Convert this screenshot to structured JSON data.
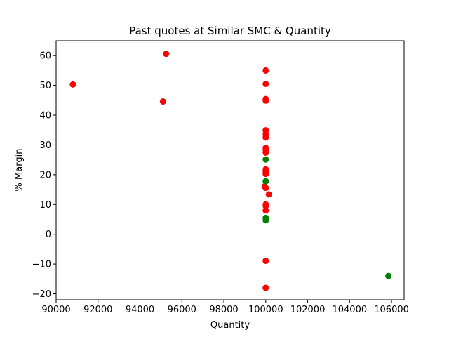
{
  "chart_data": {
    "type": "scatter",
    "title": "Past quotes at Similar SMC & Quantity",
    "xlabel": "Quantity",
    "ylabel": "% Margin",
    "xlim": [
      90000,
      106600
    ],
    "ylim": [
      -22,
      65
    ],
    "xticks": [
      90000,
      92000,
      94000,
      96000,
      98000,
      100000,
      102000,
      104000,
      106000
    ],
    "yticks": [
      -20,
      -10,
      0,
      10,
      20,
      30,
      40,
      50,
      60
    ],
    "grid": false,
    "legend": "none",
    "series": [
      {
        "color": "#ff0000",
        "points": [
          {
            "x": 90800,
            "y": 50.3
          },
          {
            "x": 95250,
            "y": 60.6
          },
          {
            "x": 95100,
            "y": 44.6
          },
          {
            "x": 100000,
            "y": 55.0
          },
          {
            "x": 100000,
            "y": 50.5
          },
          {
            "x": 100000,
            "y": 45.4
          },
          {
            "x": 100000,
            "y": 44.9
          },
          {
            "x": 100000,
            "y": 34.9
          },
          {
            "x": 100000,
            "y": 33.7
          },
          {
            "x": 100000,
            "y": 32.5
          },
          {
            "x": 100000,
            "y": 29.0
          },
          {
            "x": 100000,
            "y": 28.3
          },
          {
            "x": 100000,
            "y": 27.4
          },
          {
            "x": 100000,
            "y": 21.8
          },
          {
            "x": 100000,
            "y": 21.0
          },
          {
            "x": 100000,
            "y": 20.3
          },
          {
            "x": 99950,
            "y": 16.1
          },
          {
            "x": 100000,
            "y": 15.6
          },
          {
            "x": 100150,
            "y": 13.4
          },
          {
            "x": 100000,
            "y": 10.0
          },
          {
            "x": 100000,
            "y": 9.5
          },
          {
            "x": 100000,
            "y": 8.0
          },
          {
            "x": 100000,
            "y": -8.9
          },
          {
            "x": 100000,
            "y": -18.0
          }
        ]
      },
      {
        "color": "#008000",
        "points": [
          {
            "x": 100000,
            "y": 25.1
          },
          {
            "x": 100000,
            "y": 17.8
          },
          {
            "x": 100000,
            "y": 5.5
          },
          {
            "x": 100000,
            "y": 4.7
          },
          {
            "x": 105850,
            "y": -14.0
          }
        ]
      }
    ]
  }
}
